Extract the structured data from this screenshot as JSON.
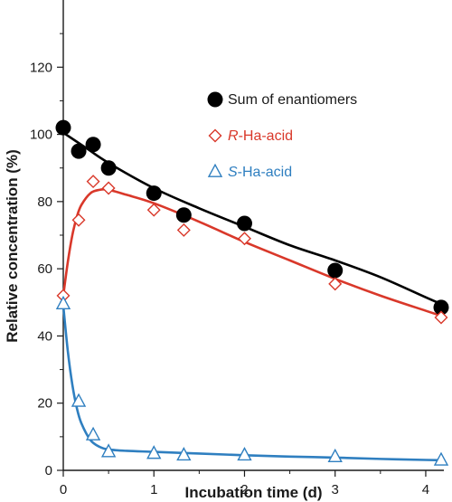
{
  "chart_data": {
    "type": "scatter",
    "xlabel": "Incubation time (d)",
    "ylabel": "Relative concentration (%)",
    "xlim": [
      0,
      4.2
    ],
    "ylim": [
      0,
      140
    ],
    "x_ticks": [
      "0",
      "1",
      "2",
      "3",
      "4"
    ],
    "y_ticks": [
      "0",
      "20",
      "40",
      "60",
      "80",
      "100",
      "120"
    ],
    "legend_position": "top-right",
    "series": [
      {
        "key": "sum",
        "name": "Sum of enantiomers",
        "label_prefix": "",
        "label_rest": "Sum of enantiomers",
        "color": "#000000",
        "marker": "filled-circle",
        "x": [
          0,
          0.17,
          0.33,
          0.5,
          1.0,
          1.33,
          2.0,
          3.0,
          4.17
        ],
        "y": [
          102,
          95,
          97,
          90,
          82.5,
          76,
          73.5,
          59.5,
          48.5
        ],
        "fit_x": [
          0,
          0.25,
          0.5,
          1,
          1.5,
          2,
          2.5,
          3,
          3.5,
          4,
          4.17
        ],
        "fit_y": [
          100.5,
          96,
          91.5,
          84,
          78,
          72.5,
          67,
          62.5,
          57.5,
          51.5,
          49.5
        ]
      },
      {
        "key": "r",
        "name": "R-Ha-acid",
        "label_prefix": "R",
        "label_rest": "-Ha-acid",
        "color": "#d9382a",
        "marker": "open-diamond",
        "x": [
          0,
          0.17,
          0.33,
          0.5,
          1.0,
          1.33,
          2.0,
          3.0,
          4.17
        ],
        "y": [
          52,
          74.5,
          86,
          84,
          77.5,
          71.5,
          69,
          55.5,
          45.5
        ],
        "fit_x": [
          0,
          0.05,
          0.1,
          0.15,
          0.2,
          0.3,
          0.4,
          0.5,
          0.7,
          1,
          1.5,
          2,
          2.5,
          3,
          3.5,
          4,
          4.17
        ],
        "fit_y": [
          52,
          62,
          70,
          75.5,
          79,
          82.5,
          83.5,
          83.5,
          82,
          79.5,
          74,
          68,
          62.5,
          57,
          52,
          47.5,
          46
        ]
      },
      {
        "key": "s",
        "name": "S-Ha-acid",
        "label_prefix": "S",
        "label_rest": "-Ha-acid",
        "color": "#2f7fc0",
        "marker": "open-triangle",
        "x": [
          0,
          0.17,
          0.33,
          0.5,
          1.0,
          1.33,
          2.0,
          3.0,
          4.17
        ],
        "y": [
          49.5,
          20.5,
          10.5,
          5.5,
          5.0,
          4.5,
          4.5,
          4.0,
          3.0
        ],
        "fit_x": [
          0,
          0.05,
          0.1,
          0.15,
          0.2,
          0.3,
          0.4,
          0.5,
          0.7,
          1,
          1.5,
          2,
          2.5,
          3,
          3.5,
          4,
          4.17
        ],
        "fit_y": [
          49,
          35.5,
          25.5,
          18.5,
          14,
          9,
          7,
          6.2,
          5.8,
          5.5,
          5.0,
          4.5,
          4.1,
          3.8,
          3.4,
          3.1,
          3.0
        ]
      }
    ]
  }
}
